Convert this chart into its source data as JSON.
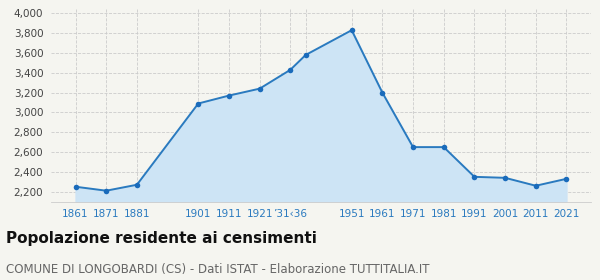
{
  "years": [
    1861,
    1871,
    1881,
    1901,
    1911,
    1921,
    1931,
    1936,
    1951,
    1961,
    1971,
    1981,
    1991,
    2001,
    2011,
    2021
  ],
  "x_labels": [
    "1861",
    "1871",
    "1881",
    "1901",
    "1911",
    "1921",
    "’31‹36",
    "",
    "1951",
    "1961",
    "1971",
    "1981",
    "1991",
    "2001",
    "2011",
    "2021"
  ],
  "population": [
    2250,
    2210,
    2270,
    3090,
    3170,
    3240,
    3430,
    3580,
    3830,
    3200,
    2650,
    2650,
    2350,
    2340,
    2260,
    2330
  ],
  "line_color": "#2a7abf",
  "fill_color": "#cde4f5",
  "marker_color": "#1a6bbb",
  "grid_color": "#cccccc",
  "background_color": "#f5f5f0",
  "ylim": [
    2100,
    4050
  ],
  "yticks": [
    2200,
    2400,
    2600,
    2800,
    3000,
    3200,
    3400,
    3600,
    3800,
    4000
  ],
  "xlim": [
    1853,
    2029
  ],
  "title": "Popolazione residente ai censimenti",
  "subtitle": "COMUNE DI LONGOBARDI (CS) - Dati ISTAT - Elaborazione TUTTITALIA.IT",
  "title_fontsize": 11,
  "subtitle_fontsize": 8.5
}
